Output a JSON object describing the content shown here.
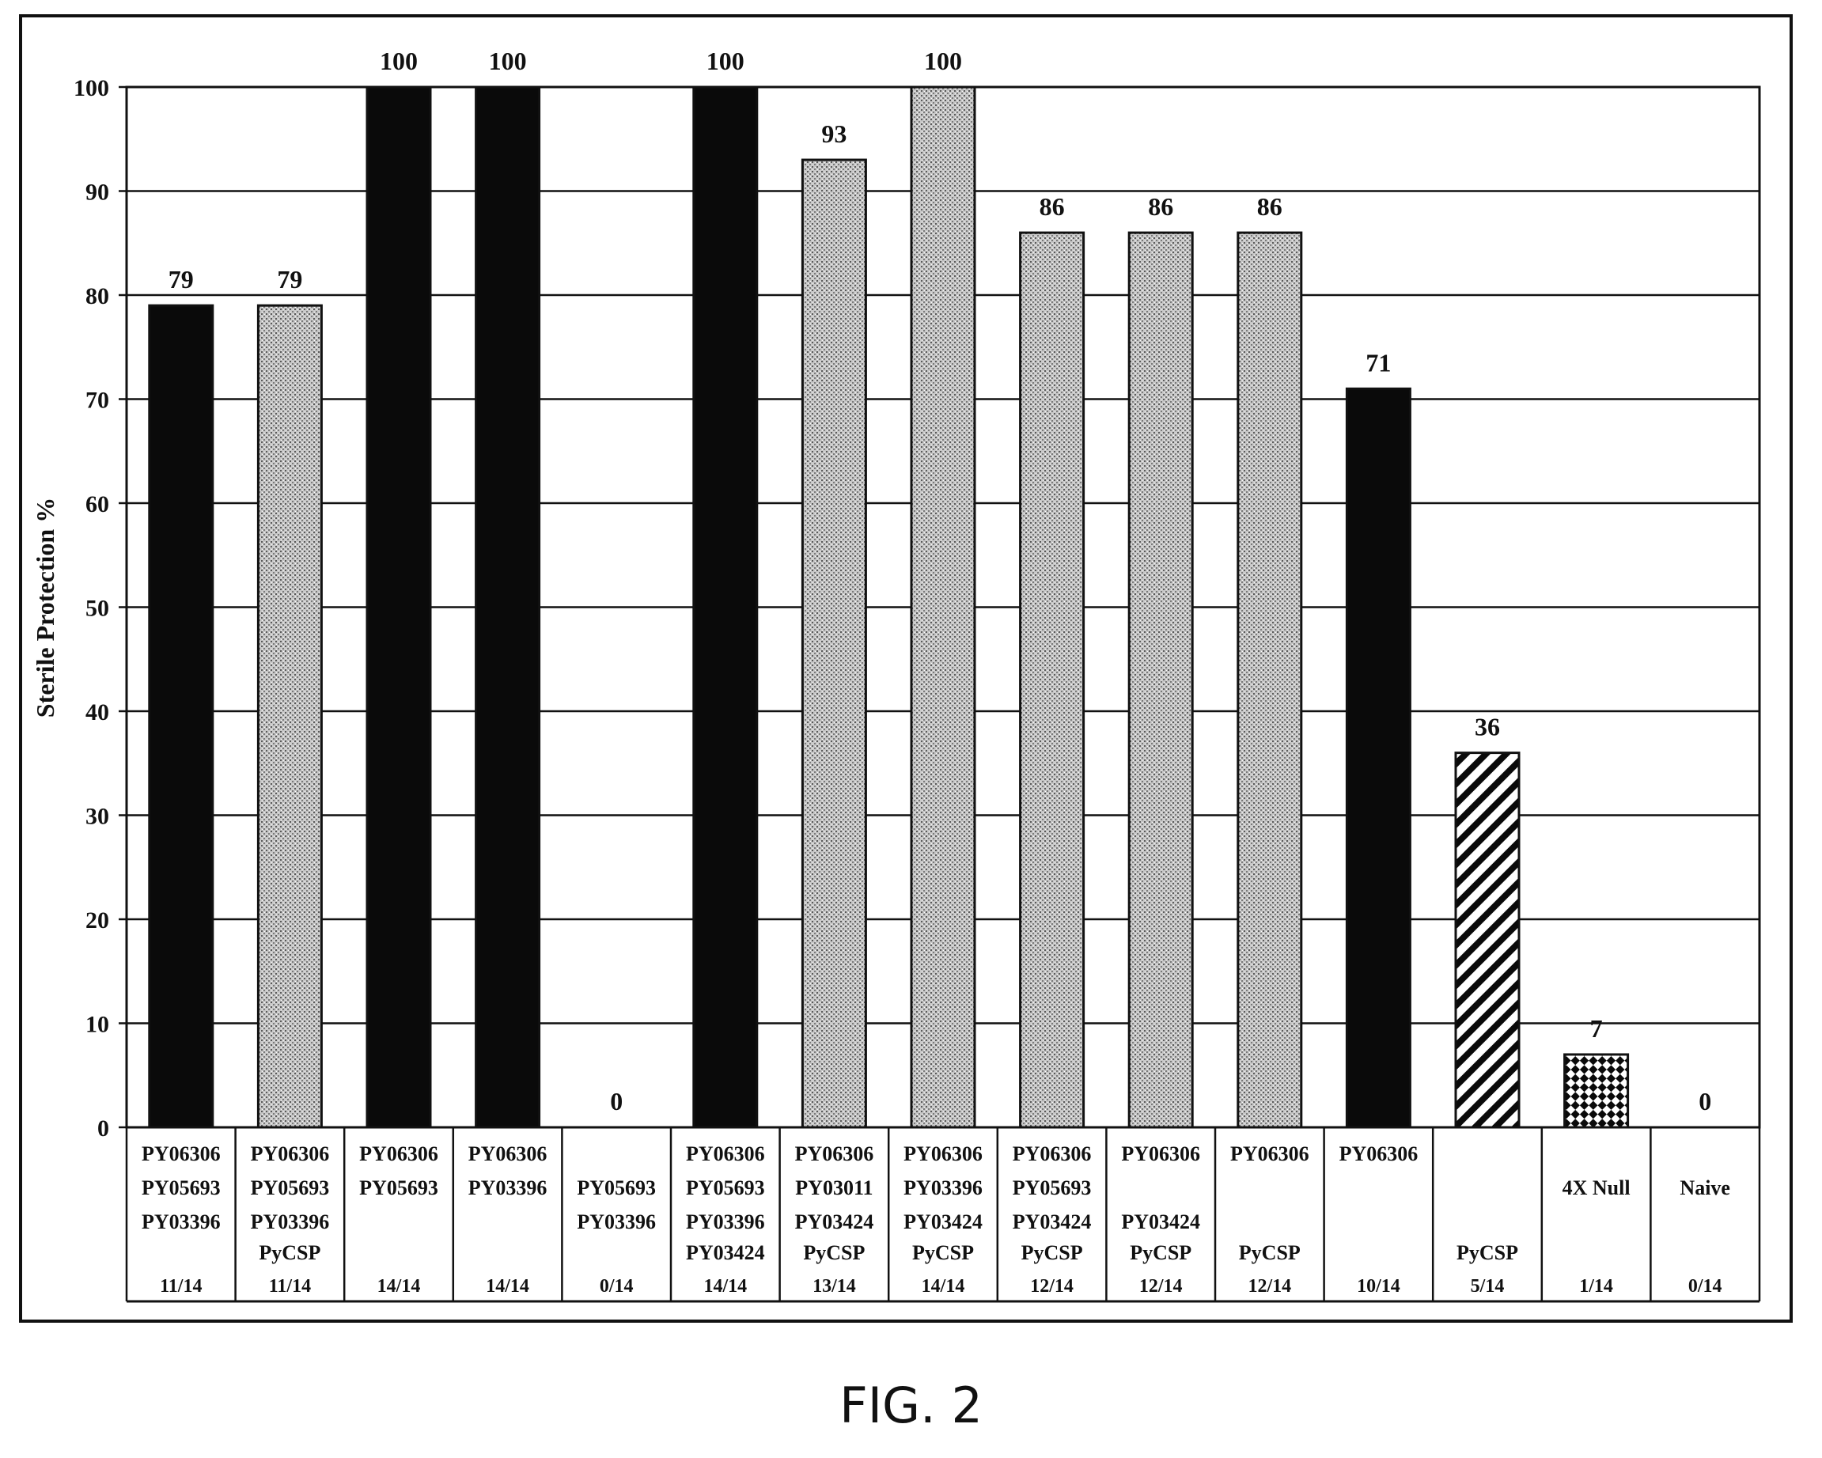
{
  "figure_caption": "FIG. 2",
  "chart_data": {
    "type": "bar",
    "ylabel": "Sterile Protection %",
    "ylim": [
      0,
      100
    ],
    "yticks": [
      0,
      10,
      20,
      30,
      40,
      50,
      60,
      70,
      80,
      90,
      100
    ],
    "grid": true,
    "legend": "none",
    "categories": [
      {
        "lines": [
          "PY06306",
          "PY05693",
          "PY03396",
          ""
        ],
        "ratio": "11/14"
      },
      {
        "lines": [
          "PY06306",
          "PY05693",
          "PY03396",
          "PyCSP"
        ],
        "ratio": "11/14"
      },
      {
        "lines": [
          "PY06306",
          "PY05693",
          "",
          ""
        ],
        "ratio": "14/14"
      },
      {
        "lines": [
          "PY06306",
          "PY03396",
          "",
          ""
        ],
        "ratio": "14/14"
      },
      {
        "lines": [
          "",
          "PY05693",
          "PY03396",
          ""
        ],
        "ratio": "0/14"
      },
      {
        "lines": [
          "PY06306",
          "PY05693",
          "PY03396",
          "PY03424"
        ],
        "ratio": "14/14"
      },
      {
        "lines": [
          "PY06306",
          "PY03011",
          "PY03424",
          "PyCSP"
        ],
        "ratio": "13/14"
      },
      {
        "lines": [
          "PY06306",
          "PY03396",
          "PY03424",
          "PyCSP"
        ],
        "ratio": "14/14"
      },
      {
        "lines": [
          "PY06306",
          "PY05693",
          "PY03424",
          "PyCSP"
        ],
        "ratio": "12/14"
      },
      {
        "lines": [
          "PY06306",
          "",
          "PY03424",
          "PyCSP"
        ],
        "ratio": "12/14"
      },
      {
        "lines": [
          "PY06306",
          "",
          "",
          "PyCSP"
        ],
        "ratio": "12/14"
      },
      {
        "lines": [
          "PY06306",
          "",
          "",
          ""
        ],
        "ratio": "10/14"
      },
      {
        "lines": [
          "",
          "",
          "",
          "PyCSP"
        ],
        "ratio": "5/14"
      },
      {
        "lines": [
          "",
          "4X Null",
          "",
          ""
        ],
        "ratio": "1/14"
      },
      {
        "lines": [
          "",
          "Naive",
          "",
          ""
        ],
        "ratio": "0/14"
      }
    ],
    "values": [
      79,
      79,
      100,
      100,
      0,
      100,
      93,
      100,
      86,
      86,
      86,
      71,
      36,
      7,
      0
    ],
    "value_labels": [
      "79",
      "79",
      "100",
      "100",
      "0",
      "100",
      "93",
      "100",
      "86",
      "86",
      "86",
      "71",
      "36",
      "7",
      "0"
    ],
    "bar_styles": [
      "black",
      "stipple",
      "black",
      "black",
      "none",
      "black",
      "stipple",
      "stipple",
      "stipple",
      "stipple",
      "stipple",
      "black",
      "hatch",
      "checker",
      "none"
    ],
    "colors": {
      "black": "#0a0a0a",
      "stipple": "#bdbdbd",
      "grid": "#111111"
    }
  }
}
